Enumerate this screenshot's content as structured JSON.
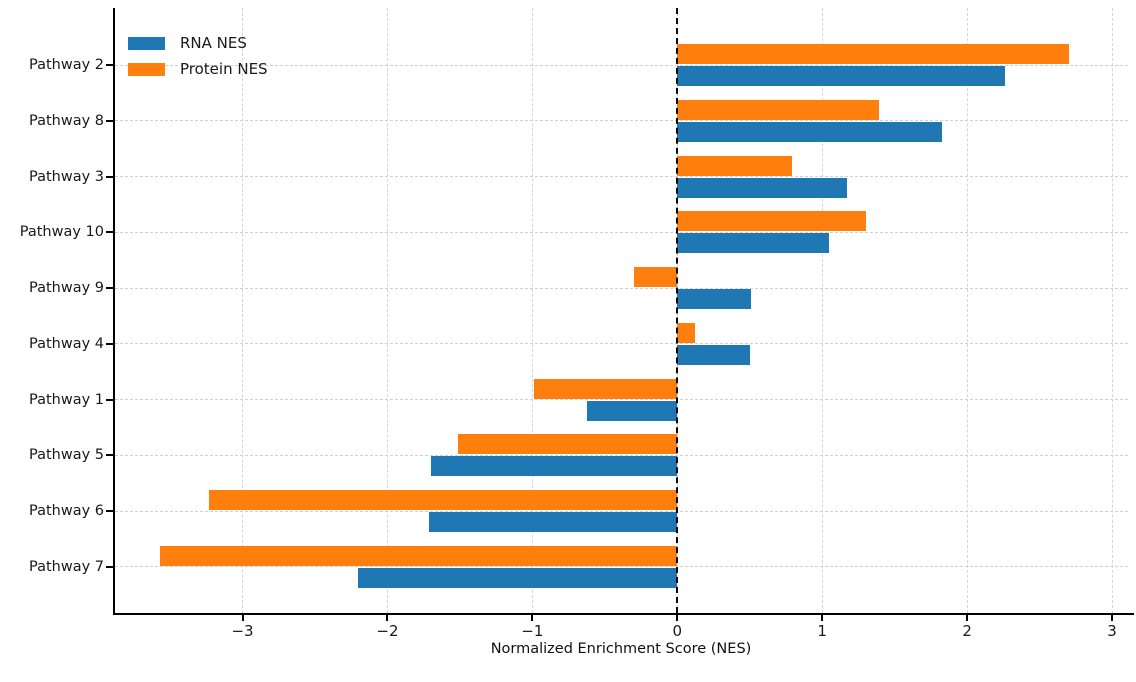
{
  "chart_data": {
    "type": "bar",
    "orientation": "horizontal",
    "title": "",
    "xlabel": "Normalized Enrichment Score (NES)",
    "ylabel": "",
    "categories": [
      "Pathway 2",
      "Pathway 8",
      "Pathway 3",
      "Pathway 10",
      "Pathway 9",
      "Pathway 4",
      "Pathway 1",
      "Pathway 5",
      "Pathway 6",
      "Pathway 7"
    ],
    "series": [
      {
        "name": "RNA NES",
        "color": "#1f77b4",
        "values": [
          2.26,
          1.83,
          1.17,
          1.05,
          0.51,
          0.5,
          -0.62,
          -1.7,
          -1.71,
          -2.2
        ]
      },
      {
        "name": "Protein NES",
        "color": "#ff7f0e",
        "values": [
          2.7,
          1.39,
          0.79,
          1.3,
          -0.3,
          0.12,
          -0.99,
          -1.51,
          -3.23,
          -3.57
        ]
      }
    ],
    "x_ticks": [
      -3,
      -2,
      -1,
      0,
      1,
      2,
      3
    ],
    "x_tick_labels": [
      "−3",
      "−2",
      "−1",
      "0",
      "1",
      "2",
      "3"
    ],
    "xlim": [
      -3.88,
      3.11
    ],
    "grid": true,
    "grid_style": "dashed",
    "legend_position": "upper left",
    "legend_frame": false,
    "zero_line": true,
    "zero_line_style": "black dashed",
    "bar_order_in_group": [
      "Protein NES above center",
      "RNA NES below center"
    ]
  }
}
